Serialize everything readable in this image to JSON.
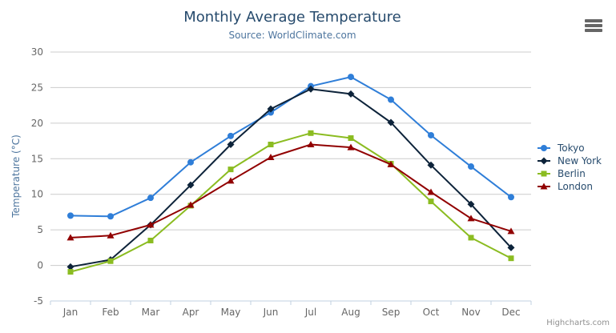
{
  "chart_data": {
    "type": "line",
    "title": "Monthly Average Temperature",
    "subtitle": "Source: WorldClimate.com",
    "xlabel": "",
    "ylabel": "Temperature (°C)",
    "ylim": [
      -5,
      30
    ],
    "ytick_interval": 5,
    "grid": true,
    "legend_position": "right-middle",
    "categories": [
      "Jan",
      "Feb",
      "Mar",
      "Apr",
      "May",
      "Jun",
      "Jul",
      "Aug",
      "Sep",
      "Oct",
      "Nov",
      "Dec"
    ],
    "series": [
      {
        "name": "Tokyo",
        "color": "#2f7ed8",
        "marker": "circle",
        "values": [
          7.0,
          6.9,
          9.5,
          14.5,
          18.2,
          21.5,
          25.2,
          26.5,
          23.3,
          18.3,
          13.9,
          9.6
        ]
      },
      {
        "name": "New York",
        "color": "#0d233a",
        "marker": "diamond",
        "values": [
          -0.2,
          0.8,
          5.7,
          11.3,
          17.0,
          22.0,
          24.8,
          24.1,
          20.1,
          14.1,
          8.6,
          2.5
        ]
      },
      {
        "name": "Berlin",
        "color": "#8bbc21",
        "marker": "square",
        "values": [
          -0.9,
          0.6,
          3.5,
          8.4,
          13.5,
          17.0,
          18.6,
          17.9,
          14.3,
          9.0,
          3.9,
          1.0
        ]
      },
      {
        "name": "London",
        "color": "#910000",
        "marker": "triangle",
        "values": [
          3.9,
          4.2,
          5.7,
          8.5,
          11.9,
          15.2,
          17.0,
          16.6,
          14.2,
          10.3,
          6.6,
          4.8
        ]
      }
    ]
  },
  "credit": "Highcharts.com",
  "export_button": {
    "icon": "hamburger-menu-icon"
  },
  "colors": {
    "title": "#274b6d",
    "subtitle": "#4d759e",
    "axis_title": "#4d759e",
    "tick_label": "#666666",
    "grid_line": "#cccccc",
    "axis_line": "#c0d0e0",
    "legend_text": "#274b6d",
    "credit": "#909090",
    "export_icon": "#666666",
    "background": "#ffffff"
  }
}
